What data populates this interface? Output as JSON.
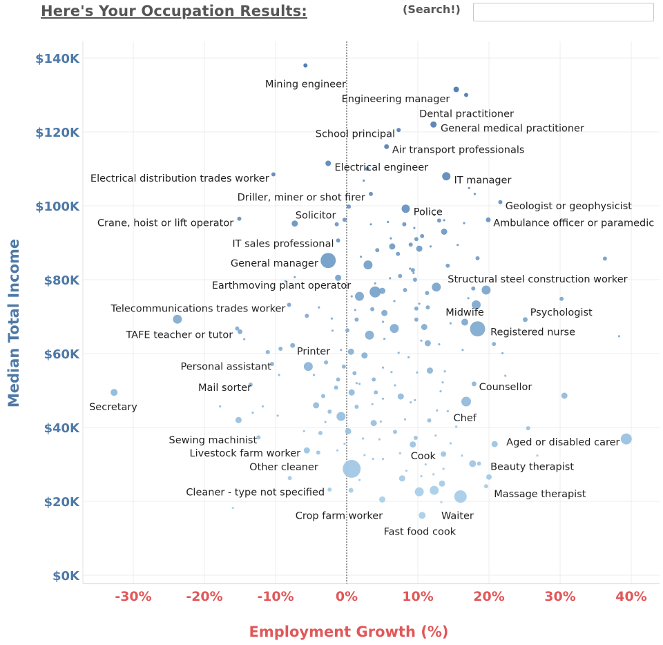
{
  "header": {
    "title": "Here's Your Occupation Results:",
    "search_label": "(Search!)",
    "search_value": "",
    "search_placeholder": ""
  },
  "colors": {
    "y_axis": "#4e79a7",
    "x_axis": "#e15759",
    "point_dark": "#4a78ad",
    "point_light": "#a9cfea",
    "title": "#555555",
    "zero_line": "#333333"
  },
  "chart_data": {
    "type": "scatter",
    "title": "",
    "xlabel": "Employment Growth (%)",
    "ylabel": "Median Total Income",
    "xlim": [
      -37,
      44
    ],
    "ylim": [
      0,
      146
    ],
    "x_ticks": [
      -30,
      -20,
      -10,
      0,
      10,
      20,
      30,
      40
    ],
    "x_tick_labels": [
      "-30%",
      "-20%",
      "-10%",
      "0%",
      "10%",
      "20%",
      "30%",
      "40%"
    ],
    "y_ticks": [
      0,
      20,
      40,
      60,
      80,
      100,
      120,
      140
    ],
    "y_tick_labels": [
      "$0K",
      "$20K",
      "$40K",
      "$60K",
      "$80K",
      "$100K",
      "$120K",
      "$140K"
    ],
    "grid": true,
    "reference_line_x": 0,
    "labeled_points": [
      {
        "label": "Mining engineer",
        "x": -5.8,
        "y": 138,
        "size": 3,
        "anchor": "end",
        "lx": -0.1,
        "ly": 133
      },
      {
        "label": "Engineering manager",
        "x": 15.4,
        "y": 131.5,
        "size": 4,
        "anchor": "end",
        "lx": 14.5,
        "ly": 129
      },
      {
        "label": "Dental practitioner",
        "x": 16.8,
        "y": 130,
        "size": 3,
        "anchor": "start",
        "lx": 10.2,
        "ly": 125
      },
      {
        "label": "General medical practitioner",
        "x": 12.2,
        "y": 122,
        "size": 4.5,
        "anchor": "start",
        "lx": 13.2,
        "ly": 121
      },
      {
        "label": "School principal",
        "x": 7.3,
        "y": 120.5,
        "size": 3,
        "anchor": "end",
        "lx": 6.8,
        "ly": 119.5
      },
      {
        "label": "Air transport professionals",
        "x": 5.6,
        "y": 116,
        "size": 3.5,
        "anchor": "start",
        "lx": 6.4,
        "ly": 115.2
      },
      {
        "label": "Electrical engineer",
        "x": -2.6,
        "y": 111.5,
        "size": 4,
        "anchor": "start",
        "lx": -1.7,
        "ly": 110.5
      },
      {
        "label": "Electrical distribution trades worker",
        "x": -10.3,
        "y": 108.5,
        "size": 3,
        "anchor": "end",
        "lx": -10.9,
        "ly": 107.5
      },
      {
        "label": "IT manager",
        "x": 14.0,
        "y": 108,
        "size": 6,
        "anchor": "start",
        "lx": 15.1,
        "ly": 107
      },
      {
        "label": "Driller, miner or shot firer",
        "x": 3.4,
        "y": 103.2,
        "size": 3,
        "anchor": "end",
        "lx": 2.6,
        "ly": 102.3
      },
      {
        "label": "Geologist or geophysicist",
        "x": 21.6,
        "y": 101,
        "size": 3,
        "anchor": "start",
        "lx": 22.3,
        "ly": 100
      },
      {
        "label": "Police",
        "x": 8.3,
        "y": 99.2,
        "size": 6,
        "anchor": "start",
        "lx": 9.4,
        "ly": 98.4
      },
      {
        "label": "Crane, hoist or lift operator",
        "x": -15.1,
        "y": 96.5,
        "size": 3,
        "anchor": "end",
        "lx": -15.9,
        "ly": 95.4
      },
      {
        "label": "Solicitor",
        "x": -7.3,
        "y": 95.2,
        "size": 4.5,
        "anchor": "start",
        "lx": -7.2,
        "ly": 97.5
      },
      {
        "label": "Ambulance officer or paramedic",
        "x": 19.9,
        "y": 96.2,
        "size": 3.5,
        "anchor": "start",
        "lx": 20.6,
        "ly": 95.4
      },
      {
        "label": "IT sales professional",
        "x": -1.2,
        "y": 90.6,
        "size": 3,
        "anchor": "end",
        "lx": -1.8,
        "ly": 89.8
      },
      {
        "label": "General manager",
        "x": -2.6,
        "y": 85.2,
        "size": 11,
        "anchor": "end",
        "lx": -4,
        "ly": 84.5
      },
      {
        "label": "Earthmoving plant operator",
        "x": 4.0,
        "y": 76.7,
        "size": 8,
        "anchor": "end",
        "lx": 0.6,
        "ly": 78.5
      },
      {
        "label": "Structural steel construction worker",
        "x": 17.8,
        "y": 77.6,
        "size": 3,
        "anchor": "start",
        "lx": 14.2,
        "ly": 80.2
      },
      {
        "label": "Telecommunications trades worker",
        "x": -8.1,
        "y": 73.2,
        "size": 3,
        "anchor": "end",
        "lx": -8.6,
        "ly": 72.2
      },
      {
        "label": "Midwife",
        "x": 16.6,
        "y": 68.5,
        "size": 5,
        "anchor": "start",
        "lx": 13.9,
        "ly": 71.2
      },
      {
        "label": "Psychologist",
        "x": 25.1,
        "y": 69.2,
        "size": 3.5,
        "anchor": "start",
        "lx": 25.8,
        "ly": 71.2
      },
      {
        "label": "Registered nurse",
        "x": 18.4,
        "y": 66.7,
        "size": 11,
        "anchor": "start",
        "lx": 20.2,
        "ly": 65.9
      },
      {
        "label": "TAFE teacher or tutor",
        "x": -15.0,
        "y": 65.9,
        "size": 3.5,
        "anchor": "end",
        "lx": -16,
        "ly": 65.1
      },
      {
        "label": "Printer",
        "x": -7.6,
        "y": 62.2,
        "size": 3.5,
        "anchor": "start",
        "lx": -7,
        "ly": 60.7
      },
      {
        "label": "Personal assistant",
        "x": -10.5,
        "y": 57.2,
        "size": 3,
        "anchor": "end",
        "lx": -10.6,
        "ly": 56.5
      },
      {
        "label": "Counsellor",
        "x": 17.9,
        "y": 51.8,
        "size": 3.5,
        "anchor": "start",
        "lx": 18.6,
        "ly": 51
      },
      {
        "label": "Mail sorter",
        "x": -13.5,
        "y": 51.6,
        "size": 3,
        "anchor": "end",
        "lx": -13.4,
        "ly": 50.8
      },
      {
        "label": "Secretary",
        "x": -32.7,
        "y": 49.5,
        "size": 5,
        "anchor": "start",
        "lx": -36.2,
        "ly": 45.6
      },
      {
        "label": "Chef",
        "x": 16.8,
        "y": 47,
        "size": 7,
        "anchor": "start",
        "lx": 15,
        "ly": 42.6
      },
      {
        "label": "Sewing machinist",
        "x": -12.4,
        "y": 37.3,
        "size": 3,
        "anchor": "end",
        "lx": -12.6,
        "ly": 36.6
      },
      {
        "label": "Aged or disabled carer",
        "x": 39.3,
        "y": 36.9,
        "size": 8,
        "anchor": "end",
        "lx": 38.4,
        "ly": 36.1
      },
      {
        "label": "Livestock farm worker",
        "x": -5.6,
        "y": 33.8,
        "size": 4.5,
        "anchor": "end",
        "lx": -6.5,
        "ly": 33.1
      },
      {
        "label": "Cook",
        "x": 13.6,
        "y": 32.8,
        "size": 4,
        "anchor": "start",
        "lx": 9,
        "ly": 32.3
      },
      {
        "label": "Other cleaner",
        "x": 0.7,
        "y": 28.8,
        "size": 13,
        "anchor": "end",
        "lx": -4,
        "ly": 29.3
      },
      {
        "label": "Beauty therapist",
        "x": 17.7,
        "y": 30.2,
        "size": 5,
        "anchor": "start",
        "lx": 20.2,
        "ly": 29.4
      },
      {
        "label": "Massage therapist",
        "x": 20.0,
        "y": 26.6,
        "size": 4,
        "anchor": "start",
        "lx": 20.7,
        "ly": 22.1
      },
      {
        "label": "Cleaner - type not specified",
        "x": -2.4,
        "y": 23.2,
        "size": 3,
        "anchor": "end",
        "lx": -3.1,
        "ly": 22.5
      },
      {
        "label": "Crop farm worker",
        "x": 0.6,
        "y": 23,
        "size": 3.5,
        "anchor": "start",
        "lx": -7.2,
        "ly": 16.2
      },
      {
        "label": "Waiter",
        "x": 16,
        "y": 21.3,
        "size": 9,
        "anchor": "start",
        "lx": 13.3,
        "ly": 16.2
      },
      {
        "label": "Fast food cook",
        "x": 10.6,
        "y": 16.2,
        "size": 5,
        "anchor": "start",
        "lx": 5.2,
        "ly": 11.9
      }
    ],
    "other_points": [
      [
        -1.4,
        95
      ],
      [
        0.3,
        99.8
      ],
      [
        3.4,
        95
      ],
      [
        5.8,
        95.6
      ],
      [
        9.5,
        94
      ],
      [
        13,
        96
      ],
      [
        13.7,
        96.1
      ],
      [
        13.7,
        93
      ],
      [
        10.6,
        91.8
      ],
      [
        6.2,
        91.2
      ],
      [
        11.8,
        89
      ],
      [
        10.2,
        88.4
      ],
      [
        7.2,
        87
      ],
      [
        2,
        86.2
      ],
      [
        14.2,
        83.8
      ],
      [
        8.9,
        83
      ],
      [
        9.3,
        82.6
      ],
      [
        9.4,
        81.8
      ],
      [
        7.5,
        81
      ],
      [
        9.6,
        80
      ],
      [
        6.1,
        80.4
      ],
      [
        4,
        79
      ],
      [
        12.6,
        78
      ],
      [
        19.6,
        77.2
      ],
      [
        17.1,
        75
      ],
      [
        0.7,
        75.5
      ],
      [
        1.8,
        75.5
      ],
      [
        6.7,
        74.2
      ],
      [
        10.2,
        73.5
      ],
      [
        9.8,
        72.2
      ],
      [
        11.4,
        72.5
      ],
      [
        1.2,
        71.8
      ],
      [
        5.1,
        68.6
      ],
      [
        6.7,
        66.8
      ],
      [
        -2,
        66.2
      ],
      [
        -14.4,
        63.9
      ],
      [
        -11.1,
        60.4
      ],
      [
        5.3,
        64
      ],
      [
        10.5,
        63.5
      ],
      [
        11.4,
        62.8
      ],
      [
        13,
        62.5
      ],
      [
        7.3,
        60.2
      ],
      [
        21.9,
        60.1
      ],
      [
        -5.4,
        56.5
      ],
      [
        9.9,
        54.9
      ],
      [
        11.7,
        55.4
      ],
      [
        1.1,
        54.7
      ],
      [
        13.8,
        55.2
      ],
      [
        -1.2,
        53
      ],
      [
        1.8,
        51.8
      ],
      [
        0.7,
        49.5
      ],
      [
        4.1,
        49.5
      ],
      [
        5.1,
        47.8
      ],
      [
        3.6,
        46.3
      ],
      [
        1.4,
        45.6
      ],
      [
        9,
        46.8
      ],
      [
        12.7,
        44.6
      ],
      [
        14.2,
        44.4
      ],
      [
        -2.4,
        44.3
      ],
      [
        11.6,
        41.9
      ],
      [
        -0.8,
        43
      ],
      [
        2.3,
        37
      ],
      [
        4.6,
        36.8
      ],
      [
        9.7,
        37.2
      ],
      [
        12.5,
        37.8
      ],
      [
        20.8,
        35.5
      ],
      [
        -4,
        33.2
      ],
      [
        3.7,
        31.5
      ],
      [
        5.1,
        31.5
      ],
      [
        13.6,
        28.8
      ],
      [
        18.6,
        30.2
      ],
      [
        11.1,
        30
      ],
      [
        10.5,
        26.8
      ],
      [
        13.4,
        24.8
      ],
      [
        7.8,
        26.2
      ],
      [
        12.3,
        23
      ],
      [
        10.2,
        22.6
      ],
      [
        5,
        20.5
      ],
      [
        -0.3,
        96.2
      ],
      [
        4.3,
        88
      ],
      [
        8.1,
        95
      ],
      [
        12.3,
        97.5
      ],
      [
        16.5,
        95.3
      ],
      [
        2.4,
        106.8
      ],
      [
        17.2,
        104.8
      ],
      [
        18,
        103.2
      ],
      [
        2.9,
        110
      ],
      [
        -15.4,
        66.8
      ],
      [
        -17.3,
        51
      ],
      [
        -23.8,
        69.3
      ],
      [
        -7.3,
        80.7
      ],
      [
        -8.6,
        79.6
      ],
      [
        -5.6,
        70.2
      ],
      [
        -3.9,
        72.5
      ],
      [
        -2.1,
        69.5
      ],
      [
        3.2,
        65
      ],
      [
        3.6,
        72
      ],
      [
        5.3,
        71
      ],
      [
        1.4,
        69.2
      ],
      [
        0.1,
        66.3
      ],
      [
        -0.8,
        61
      ],
      [
        0.6,
        60.5
      ],
      [
        2.5,
        59.5
      ],
      [
        8.7,
        59
      ],
      [
        16.3,
        61
      ],
      [
        22.3,
        54
      ],
      [
        -2.9,
        57.6
      ],
      [
        -1.5,
        50.8
      ],
      [
        -3.3,
        48.5
      ],
      [
        -4.3,
        46
      ],
      [
        6.8,
        51.4
      ],
      [
        7.6,
        48.4
      ],
      [
        9.6,
        47.4
      ],
      [
        13.2,
        49.8
      ],
      [
        13.5,
        52.2
      ],
      [
        -6,
        39
      ],
      [
        -3.7,
        38.5
      ],
      [
        0.2,
        39
      ],
      [
        3.8,
        41.2
      ],
      [
        4.8,
        41.6
      ],
      [
        6.8,
        38.8
      ],
      [
        8.2,
        42.2
      ],
      [
        15.4,
        40.2
      ],
      [
        25.5,
        39.8
      ],
      [
        -0.3,
        35.6
      ],
      [
        -1.3,
        33.8
      ],
      [
        2.5,
        32.5
      ],
      [
        7.5,
        33
      ],
      [
        9.3,
        35.4
      ],
      [
        14.6,
        35.7
      ],
      [
        16.2,
        32.4
      ],
      [
        26.8,
        32.4
      ],
      [
        -8,
        26.3
      ],
      [
        1.8,
        25.8
      ],
      [
        8.4,
        28.3
      ],
      [
        12.2,
        27.3
      ],
      [
        19.6,
        24.1
      ],
      [
        -16,
        18.2
      ],
      [
        13.3,
        19.8
      ],
      [
        30.6,
        48.6
      ],
      [
        36.3,
        85.7
      ],
      [
        30.2,
        74.8
      ],
      [
        38.3,
        64.7
      ],
      [
        18.2,
        73.2
      ],
      [
        20.7,
        62.6
      ],
      [
        -9.3,
        61.3
      ],
      [
        -9.5,
        54.2
      ],
      [
        -11.8,
        45.7
      ],
      [
        -17.8,
        45.7
      ],
      [
        -15.2,
        42
      ],
      [
        -13.2,
        44
      ],
      [
        -9.7,
        43.2
      ],
      [
        -3,
        41.5
      ],
      [
        6.3,
        55
      ],
      [
        -4.6,
        54.2
      ],
      [
        3.8,
        53
      ],
      [
        1.4,
        52
      ],
      [
        5.1,
        56.2
      ],
      [
        -0.4,
        56.5
      ],
      [
        10.9,
        67.2
      ],
      [
        9.8,
        69.2
      ],
      [
        14.6,
        68.2
      ],
      [
        3.4,
        76.5
      ],
      [
        5,
        77
      ],
      [
        8.2,
        77.2
      ],
      [
        11.3,
        76.4
      ],
      [
        6.4,
        89
      ],
      [
        9,
        89.5
      ],
      [
        9.8,
        91
      ],
      [
        3,
        84
      ],
      [
        -1.2,
        80.5
      ],
      [
        15.6,
        89.4
      ],
      [
        18.4,
        85.8
      ]
    ]
  }
}
